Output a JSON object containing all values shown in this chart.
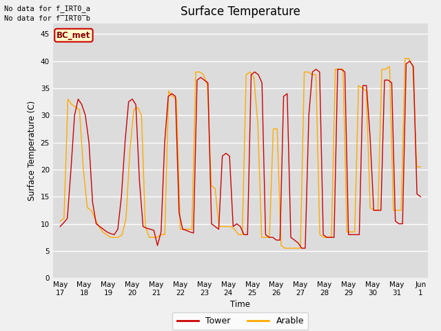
{
  "title": "Surface Temperature",
  "ylabel": "Surface Temperature (C)",
  "xlabel": "Time",
  "text_line1": "No data for f_IRT0_a",
  "text_line2": "No data for f̅IRT0̅b",
  "bc_met_label": "BC_met",
  "legend_labels": [
    "Tower",
    "Arable"
  ],
  "tower_color": "#cc0000",
  "arable_color": "#ffaa00",
  "ylim": [
    0,
    47
  ],
  "yticks": [
    0,
    5,
    10,
    15,
    20,
    25,
    30,
    35,
    40,
    45
  ],
  "fig_facecolor": "#f0f0f0",
  "axes_facecolor": "#dcdcdc",
  "grid_color": "#ffffff",
  "x_tick_labels": [
    "May 17",
    "May 18",
    "May 19",
    "May 20",
    "May 21",
    "May 22",
    "May 23",
    "May 24",
    "May 25",
    "May 26",
    "May 27",
    "May 28",
    "May 29",
    "May 30",
    "May 31",
    "Jun 1"
  ],
  "tower_data": [
    9.5,
    10.2,
    11.0,
    20.0,
    30.0,
    33.0,
    32.0,
    30.0,
    25.0,
    14.0,
    10.0,
    9.5,
    9.0,
    8.5,
    8.2,
    8.0,
    9.0,
    15.0,
    25.0,
    32.5,
    33.0,
    32.0,
    18.0,
    9.5,
    9.2,
    9.0,
    8.8,
    6.0,
    8.5,
    25.0,
    33.5,
    34.0,
    33.5,
    12.0,
    9.0,
    8.8,
    8.5,
    8.3,
    36.5,
    37.0,
    36.5,
    36.0,
    10.0,
    9.5,
    9.0,
    22.5,
    23.0,
    22.5,
    9.5,
    10.0,
    9.5,
    8.0,
    8.0,
    37.5,
    38.0,
    37.5,
    36.0,
    8.0,
    7.5,
    7.5,
    7.0,
    7.0,
    33.5,
    34.0,
    7.5,
    7.0,
    6.5,
    5.5,
    5.5,
    30.0,
    38.0,
    38.5,
    38.0,
    8.0,
    7.5,
    7.5,
    7.5,
    38.5,
    38.5,
    38.0,
    8.0,
    8.0,
    8.0,
    8.0,
    35.5,
    35.5,
    26.0,
    12.5,
    12.5,
    12.5,
    36.5,
    36.5,
    36.0,
    10.5,
    10.0,
    10.0,
    39.5,
    40.0,
    39.0,
    15.5,
    15.0
  ],
  "arable_data": [
    10.5,
    11.0,
    33.0,
    32.0,
    31.5,
    31.0,
    20.0,
    13.0,
    12.5,
    11.0,
    9.5,
    8.5,
    8.0,
    7.5,
    7.5,
    7.5,
    8.0,
    11.0,
    23.5,
    31.0,
    31.5,
    30.0,
    9.5,
    7.5,
    7.5,
    7.5,
    8.0,
    8.0,
    34.5,
    33.5,
    33.0,
    9.0,
    9.0,
    9.0,
    9.0,
    38.0,
    38.0,
    37.5,
    35.5,
    17.0,
    16.5,
    9.5,
    9.5,
    9.5,
    9.5,
    9.0,
    8.0,
    8.0,
    37.5,
    38.0,
    37.0,
    28.5,
    7.5,
    7.5,
    7.5,
    27.5,
    27.5,
    6.0,
    5.5,
    5.5,
    5.5,
    5.5,
    5.5,
    38.0,
    38.0,
    37.5,
    37.5,
    8.0,
    7.5,
    7.5,
    7.5,
    38.5,
    38.5,
    38.5,
    8.5,
    8.5,
    8.5,
    35.5,
    35.0,
    34.5,
    13.0,
    12.5,
    12.5,
    38.5,
    38.5,
    39.0,
    12.5,
    12.5,
    12.5,
    40.5,
    40.5,
    39.0,
    20.5,
    20.5
  ]
}
